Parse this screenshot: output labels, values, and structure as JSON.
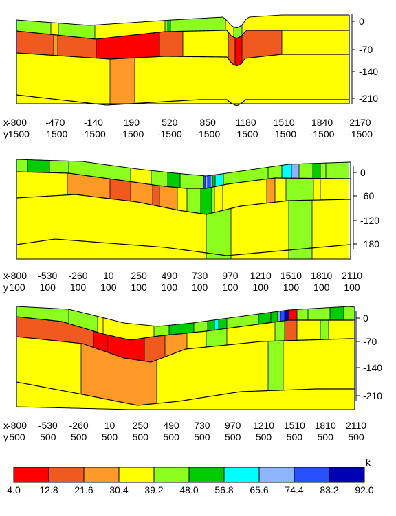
{
  "chart_data": {
    "type": "heatmap",
    "title": "",
    "legend": {
      "label": "k",
      "colors": [
        "#ff0000",
        "#f05a1e",
        "#ff9a28",
        "#ffff00",
        "#8cff1e",
        "#00cc00",
        "#00ffff",
        "#8cb4ff",
        "#2850ff",
        "#0000b4"
      ],
      "ticks": [
        "4.0",
        "12.8",
        "21.6",
        "30.4",
        "39.2",
        "48.0",
        "56.8",
        "65.6",
        "74.4",
        "83.2",
        "92.0"
      ]
    },
    "panels": [
      {
        "name": "section-1",
        "y_label": "y",
        "y_value_label": "-1500",
        "x_ticks": [
          "-800",
          "-470",
          "-140",
          "190",
          "520",
          "850",
          "1180",
          "1510",
          "1840",
          "2170"
        ],
        "y_ticks": [
          "0",
          "-70",
          "-140",
          "-210"
        ]
      },
      {
        "name": "section-2",
        "y_label": "y",
        "y_value_label": "100",
        "x_ticks": [
          "-800",
          "-530",
          "-260",
          "10",
          "250",
          "490",
          "730",
          "970",
          "1210",
          "1510",
          "1810",
          "2110"
        ],
        "y_ticks": [
          "0",
          "-60",
          "-120",
          "-180"
        ]
      },
      {
        "name": "section-3",
        "y_label": "y",
        "y_value_label": "500",
        "x_ticks": [
          "-800",
          "-530",
          "-260",
          "10",
          "250",
          "490",
          "730",
          "970",
          "1210",
          "1510",
          "1810",
          "2110"
        ],
        "y_ticks": [
          "0",
          "-70",
          "-140",
          "-210"
        ]
      }
    ]
  }
}
